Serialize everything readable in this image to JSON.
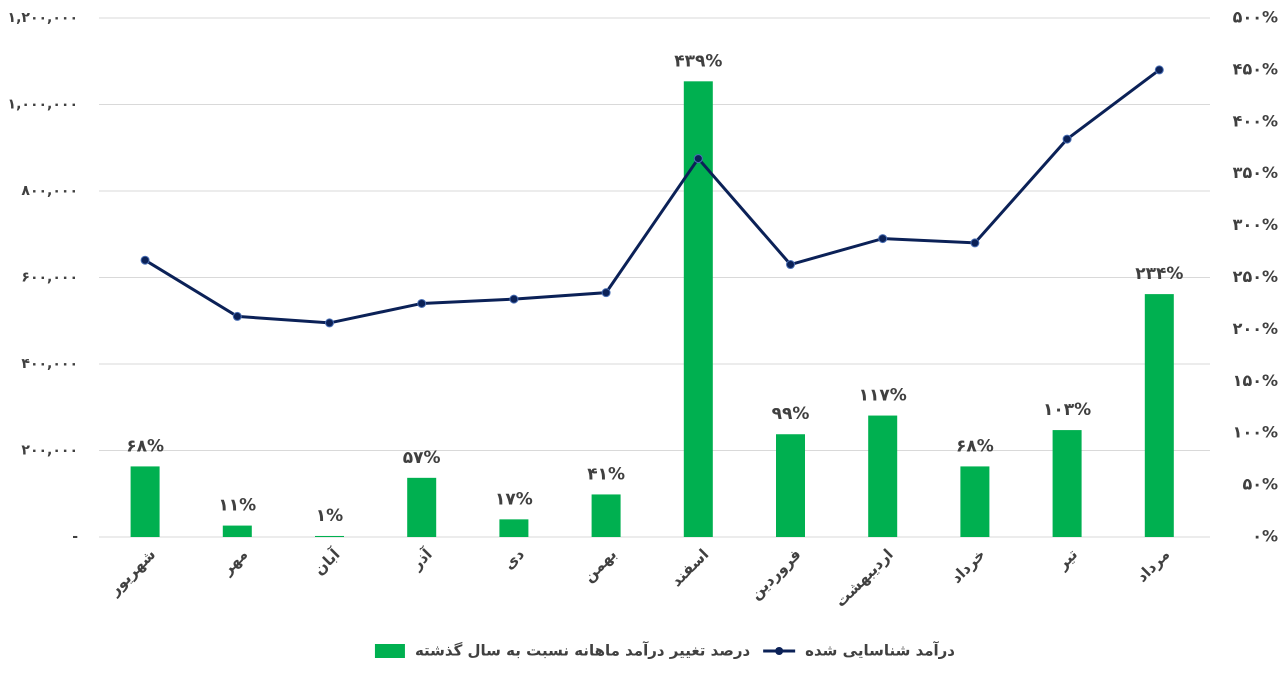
{
  "chart_data": {
    "type": "combo",
    "categories": [
      "شهریور",
      "مهر",
      "آبان",
      "آذر",
      "دی",
      "بهمن",
      "اسفند",
      "فروردین",
      "اردیبهشت",
      "خرداد",
      "تیر",
      "مرداد"
    ],
    "series": [
      {
        "name": "درصد تغییر درآمد ماهانه نسبت به سال گذشته",
        "type": "bar",
        "axis": "y2",
        "color": "#00b050",
        "values": [
          68,
          11,
          1,
          57,
          17,
          41,
          439,
          99,
          117,
          68,
          103,
          234
        ],
        "value_labels": [
          "۶۸%",
          "۱۱%",
          "۱%",
          "۵۷%",
          "۱۷%",
          "۴۱%",
          "۴۳۹%",
          "۹۹%",
          "۱۱۷%",
          "۶۸%",
          "۱۰۳%",
          "۲۳۴%"
        ]
      },
      {
        "name": "درآمد شناسایی شده",
        "type": "line",
        "color": "#0b2157",
        "values": [
          640000,
          510000,
          495000,
          540000,
          550000,
          565000,
          875000,
          630000,
          690000,
          680000,
          920000,
          1080000
        ]
      }
    ],
    "ylim": [
      0,
      1200000
    ],
    "yticks": [
      {
        "value": 0,
        "label": "-"
      },
      {
        "value": 200000,
        "label": "۲۰۰,۰۰۰"
      },
      {
        "value": 400000,
        "label": "۴۰۰,۰۰۰"
      },
      {
        "value": 600000,
        "label": "۶۰۰,۰۰۰"
      },
      {
        "value": 800000,
        "label": "۸۰۰,۰۰۰"
      },
      {
        "value": 1000000,
        "label": "۱,۰۰۰,۰۰۰"
      },
      {
        "value": 1200000,
        "label": "۱,۲۰۰,۰۰۰"
      }
    ],
    "y2lim": [
      0,
      500
    ],
    "y2ticks": [
      {
        "value": 0,
        "label": "۰%"
      },
      {
        "value": 50,
        "label": "۵۰%"
      },
      {
        "value": 100,
        "label": "۱۰۰%"
      },
      {
        "value": 150,
        "label": "۱۵۰%"
      },
      {
        "value": 200,
        "label": "۲۰۰%"
      },
      {
        "value": 250,
        "label": "۲۵۰%"
      },
      {
        "value": 300,
        "label": "۳۰۰%"
      },
      {
        "value": 350,
        "label": "۳۵۰%"
      },
      {
        "value": 400,
        "label": "۴۰۰%"
      },
      {
        "value": 450,
        "label": "۴۵۰%"
      },
      {
        "value": 500,
        "label": "۵۰۰%"
      }
    ],
    "grid": true,
    "legend": "bottom"
  }
}
